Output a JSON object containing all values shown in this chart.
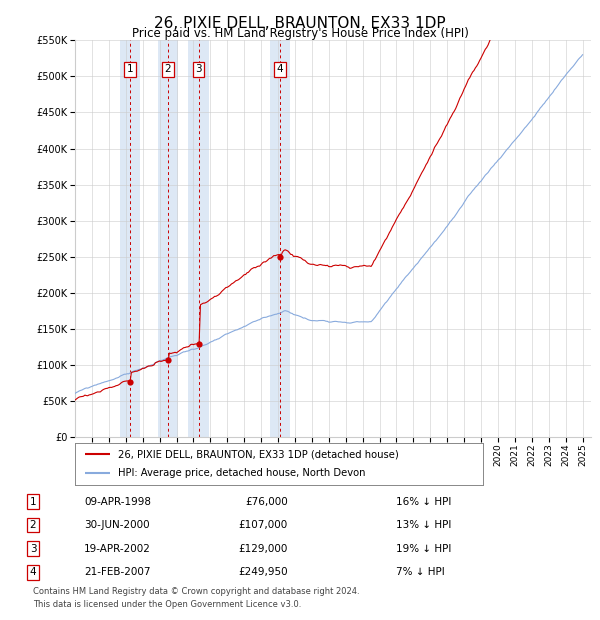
{
  "title": "26, PIXIE DELL, BRAUNTON, EX33 1DP",
  "subtitle": "Price paid vs. HM Land Registry's House Price Index (HPI)",
  "legend_property": "26, PIXIE DELL, BRAUNTON, EX33 1DP (detached house)",
  "legend_hpi": "HPI: Average price, detached house, North Devon",
  "sales": [
    {
      "num": 1,
      "date": "09-APR-1998",
      "year": 1998.27,
      "price": 76000,
      "pct": "16% ↓ HPI"
    },
    {
      "num": 2,
      "date": "30-JUN-2000",
      "year": 2000.5,
      "price": 107000,
      "pct": "13% ↓ HPI"
    },
    {
      "num": 3,
      "date": "19-APR-2002",
      "year": 2002.3,
      "price": 129000,
      "pct": "19% ↓ HPI"
    },
    {
      "num": 4,
      "date": "21-FEB-2007",
      "year": 2007.13,
      "price": 249950,
      "pct": "7% ↓ HPI"
    }
  ],
  "footer_line1": "Contains HM Land Registry data © Crown copyright and database right 2024.",
  "footer_line2": "This data is licensed under the Open Government Licence v3.0.",
  "ylim": [
    0,
    550000
  ],
  "xlim": [
    1995.0,
    2025.5
  ],
  "property_color": "#cc0000",
  "hpi_color": "#88aadd",
  "span_color": "#dde8f5",
  "plot_bg": "#ffffff",
  "grid_color": "#cccccc",
  "vline_color": "#cc0000",
  "box_color": "#cc0000",
  "sale_marker_color": "#cc0000"
}
